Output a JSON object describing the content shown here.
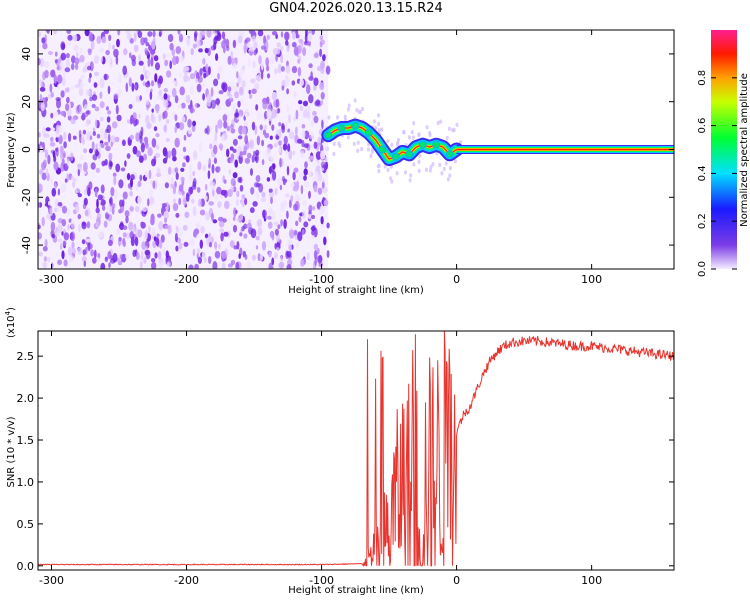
{
  "title": "GN04.2026.020.13.15.R24",
  "chart_data": [
    {
      "type": "heatmap",
      "xlabel": "Height of straight line (km)",
      "ylabel": "Frequency (Hz)",
      "xlim": [
        -310,
        161
      ],
      "ylim": [
        -50,
        50
      ],
      "x_ticks": [
        -300,
        -200,
        -100,
        0,
        100
      ],
      "y_ticks": [
        -40,
        -20,
        0,
        20,
        40
      ],
      "noise_region_x": [
        -310,
        -95
      ],
      "trace": [
        {
          "x": -95,
          "f": 6
        },
        {
          "x": -90,
          "f": 8
        },
        {
          "x": -85,
          "f": 9
        },
        {
          "x": -80,
          "f": 9
        },
        {
          "x": -75,
          "f": 10
        },
        {
          "x": -70,
          "f": 9
        },
        {
          "x": -65,
          "f": 7
        },
        {
          "x": -60,
          "f": 4
        },
        {
          "x": -55,
          "f": 0
        },
        {
          "x": -50,
          "f": -4
        },
        {
          "x": -45,
          "f": -3
        },
        {
          "x": -40,
          "f": -1
        },
        {
          "x": -35,
          "f": -2
        },
        {
          "x": -30,
          "f": 1
        },
        {
          "x": -25,
          "f": 2
        },
        {
          "x": -20,
          "f": 1
        },
        {
          "x": -15,
          "f": 2
        },
        {
          "x": -10,
          "f": 1
        },
        {
          "x": -5,
          "f": -2
        },
        {
          "x": 0,
          "f": 0
        }
      ],
      "constant_line": {
        "x_start": 0,
        "x_end": 161,
        "f": 0
      },
      "colorbar": {
        "label": "Normalized spectral amplitude",
        "range": [
          0,
          1
        ],
        "ticks": [
          "0.0",
          "0.2",
          "0.4",
          "0.6",
          "0.8"
        ],
        "tick_values": [
          0.0,
          0.2,
          0.4,
          0.6,
          0.8
        ]
      }
    },
    {
      "type": "line",
      "xlabel": "Height of straight line (km)",
      "ylabel": "SNR (10 * v/v)",
      "scale_label": "(x10",
      "scale_exp": "4",
      "scale_close": ")",
      "xlim": [
        -310,
        161
      ],
      "ylim": [
        -0.05,
        2.8
      ],
      "x_ticks": [
        -300,
        -200,
        -100,
        0,
        100
      ],
      "y_ticks": [
        "0.0",
        "0.5",
        "1.0",
        "1.5",
        "2.0",
        "2.5"
      ],
      "y_tick_values": [
        0.0,
        0.5,
        1.0,
        1.5,
        2.0,
        2.5
      ],
      "color": "#e8342e",
      "series": [
        {
          "name": "SNR",
          "x": [
            -310,
            -200,
            -100,
            -70,
            -60,
            -55,
            -50,
            -45,
            -40,
            -35,
            -30,
            -25,
            -20,
            -15,
            -10,
            -5,
            0,
            5,
            10,
            15,
            20,
            25,
            30,
            35,
            40,
            50,
            60,
            70,
            80,
            90,
            100,
            110,
            120,
            130,
            140,
            150,
            161
          ],
          "y": [
            0.01,
            0.01,
            0.01,
            0.02,
            0.1,
            0.2,
            0.4,
            0.8,
            1.0,
            0.9,
            0.8,
            0.8,
            1.0,
            1.1,
            1.3,
            1.4,
            1.6,
            1.8,
            1.9,
            2.1,
            2.3,
            2.45,
            2.55,
            2.62,
            2.66,
            2.68,
            2.68,
            2.66,
            2.64,
            2.62,
            2.62,
            2.6,
            2.58,
            2.56,
            2.54,
            2.52,
            2.5
          ]
        }
      ],
      "noise_band_x": [
        -70,
        0
      ]
    }
  ]
}
